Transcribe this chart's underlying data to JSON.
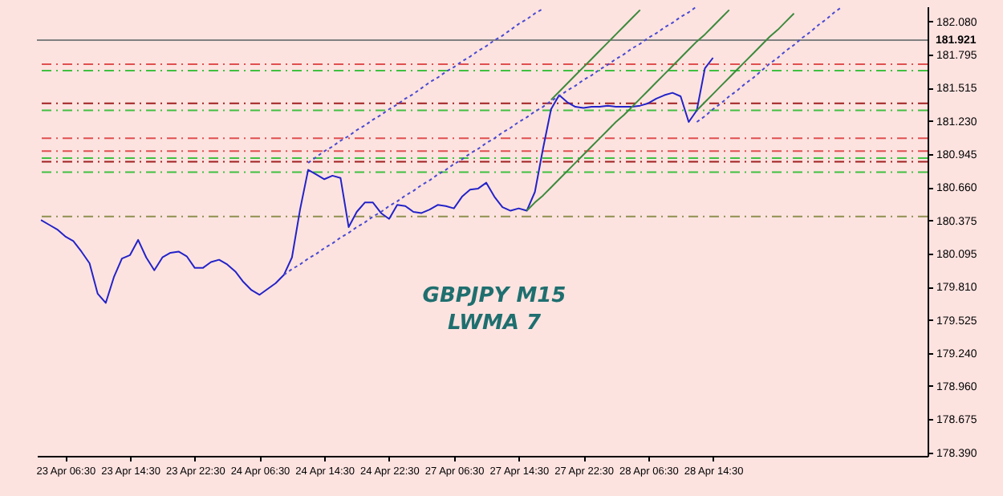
{
  "chart_data": {
    "type": "line",
    "annotations": [
      "GBPJPY M15",
      "LWMA 7"
    ],
    "categories": [
      null,
      null,
      null,
      "23 Apr 06:30",
      null,
      null,
      null,
      null,
      null,
      null,
      null,
      "23 Apr 14:30",
      null,
      null,
      null,
      null,
      null,
      null,
      null,
      "23 Apr 22:30",
      null,
      null,
      null,
      null,
      null,
      null,
      null,
      "24 Apr 06:30",
      null,
      null,
      null,
      null,
      null,
      null,
      null,
      "24 Apr 14:30",
      null,
      null,
      null,
      null,
      null,
      null,
      null,
      "24 Apr 22:30",
      null,
      null,
      null,
      null,
      null,
      null,
      null,
      "27 Apr 06:30",
      null,
      null,
      null,
      null,
      null,
      null,
      null,
      "27 Apr 14:30",
      null,
      null,
      null,
      null,
      null,
      null,
      null,
      "27 Apr 22:30",
      null,
      null,
      null,
      null,
      null,
      null,
      null,
      "28 Apr 06:30",
      null,
      null,
      null,
      null,
      null,
      null,
      null,
      "28 Apr 14:30",
      null,
      null,
      null,
      null,
      null,
      null,
      null,
      null,
      null,
      null,
      null,
      null,
      null,
      null,
      null,
      null,
      null,
      null,
      null,
      null,
      null,
      null,
      null,
      null,
      null,
      null
    ],
    "ylim": [
      178.36,
      182.21
    ],
    "yticks": [
      {
        "value": 182.08,
        "label": "182.080"
      },
      {
        "value": 181.795,
        "label": "181.795"
      },
      {
        "value": 181.515,
        "label": "181.515"
      },
      {
        "value": 181.23,
        "label": "181.230"
      },
      {
        "value": 180.945,
        "label": "180.945"
      },
      {
        "value": 180.66,
        "label": "180.660"
      },
      {
        "value": 180.375,
        "label": "180.375"
      },
      {
        "value": 180.095,
        "label": "180.095"
      },
      {
        "value": 179.81,
        "label": "179.810"
      },
      {
        "value": 179.525,
        "label": "179.525"
      },
      {
        "value": 179.24,
        "label": "179.240"
      },
      {
        "value": 178.96,
        "label": "178.960"
      },
      {
        "value": 178.675,
        "label": "178.675"
      },
      {
        "value": 178.39,
        "label": "178.390"
      }
    ],
    "series": [
      {
        "color": "#2323c8",
        "line_style": "solid",
        "values": [
          180.38,
          180.34,
          180.3,
          180.24,
          180.2,
          180.11,
          180.01,
          179.75,
          179.67,
          179.89,
          180.05,
          180.08,
          180.21,
          180.06,
          179.95,
          180.06,
          180.1,
          180.11,
          180.07,
          179.97,
          179.97,
          180.02,
          180.04,
          180.0,
          179.94,
          179.85,
          179.78,
          179.74,
          179.79,
          179.84,
          179.91,
          180.06,
          180.47,
          180.81,
          180.77,
          180.73,
          180.76,
          180.74,
          180.32,
          180.45,
          180.53,
          180.53,
          180.44,
          180.39,
          180.51,
          180.5,
          180.45,
          180.44,
          180.47,
          180.51,
          180.5,
          180.48,
          180.58,
          180.64,
          180.65,
          180.7,
          180.58,
          180.49,
          180.46,
          180.48,
          180.46,
          180.62,
          180.99,
          181.33,
          181.45,
          181.39,
          181.35,
          181.34,
          181.35,
          181.35,
          181.36,
          181.35,
          181.35,
          181.35,
          181.36,
          181.38,
          181.42,
          181.45,
          181.47,
          181.44,
          181.22,
          181.32,
          181.68,
          181.77,
          null,
          null,
          null,
          null,
          null,
          null,
          null,
          null,
          null,
          null,
          null,
          null,
          null,
          null,
          null,
          null,
          null,
          null,
          null,
          null,
          null,
          null,
          null,
          null,
          null,
          null
        ]
      },
      {
        "color": "#4a4ad0",
        "line_style": "dotted",
        "values": [
          null,
          null,
          null,
          null,
          null,
          null,
          null,
          null,
          null,
          null,
          null,
          null,
          null,
          null,
          null,
          null,
          null,
          null,
          null,
          null,
          null,
          null,
          null,
          null,
          null,
          null,
          null,
          null,
          null,
          null,
          179.91,
          179.96,
          180.0,
          180.05,
          180.09,
          180.14,
          180.18,
          180.23,
          180.27,
          180.32,
          180.36,
          180.41,
          180.45,
          180.5,
          180.54,
          180.59,
          180.63,
          180.68,
          180.72,
          180.77,
          180.81,
          180.86,
          180.9,
          180.95,
          180.99,
          181.04,
          181.08,
          181.13,
          181.17,
          181.22,
          181.26,
          181.31,
          181.35,
          181.4,
          181.44,
          181.49,
          181.53,
          181.58,
          181.62,
          181.67,
          181.71,
          181.76,
          181.8,
          181.85,
          181.89,
          181.94,
          181.98,
          182.03,
          182.07,
          182.12,
          182.16,
          182.21,
          null,
          null,
          null,
          null,
          null,
          null,
          null,
          null,
          null,
          null,
          null,
          null,
          null,
          null,
          null,
          null,
          null,
          null,
          null,
          null,
          null,
          null,
          null,
          null,
          null,
          null,
          null,
          null
        ]
      },
      {
        "color": "#4a4ad0",
        "line_style": "dotted",
        "values": [
          null,
          null,
          null,
          null,
          null,
          null,
          null,
          null,
          null,
          null,
          null,
          null,
          null,
          null,
          null,
          null,
          null,
          null,
          null,
          null,
          null,
          null,
          null,
          null,
          null,
          null,
          null,
          null,
          null,
          null,
          null,
          null,
          null,
          180.87,
          180.92,
          180.97,
          181.01,
          181.06,
          181.1,
          181.15,
          181.19,
          181.24,
          181.28,
          181.33,
          181.37,
          181.42,
          181.46,
          181.51,
          181.56,
          181.6,
          181.65,
          181.69,
          181.74,
          181.78,
          181.83,
          181.87,
          181.92,
          181.96,
          182.01,
          182.06,
          182.1,
          182.15,
          182.19,
          null,
          null,
          null,
          null,
          null,
          null,
          null,
          null,
          null,
          null,
          null,
          null,
          null,
          null,
          null,
          null,
          null,
          null,
          null,
          null,
          null,
          null,
          null,
          null,
          null,
          null,
          null,
          null,
          null,
          null,
          null,
          null,
          null,
          null,
          null,
          null,
          null,
          null,
          null,
          null,
          null,
          null,
          null,
          null,
          null,
          null,
          null
        ]
      },
      {
        "color": "#4a4ad0",
        "line_style": "dotted",
        "values": [
          null,
          null,
          null,
          null,
          null,
          null,
          null,
          null,
          null,
          null,
          null,
          null,
          null,
          null,
          null,
          null,
          null,
          null,
          null,
          null,
          null,
          null,
          null,
          null,
          null,
          null,
          null,
          null,
          null,
          null,
          null,
          null,
          null,
          null,
          null,
          null,
          null,
          null,
          null,
          null,
          null,
          null,
          null,
          null,
          null,
          null,
          null,
          null,
          null,
          null,
          null,
          null,
          null,
          null,
          null,
          null,
          null,
          null,
          null,
          null,
          null,
          null,
          null,
          null,
          null,
          null,
          null,
          null,
          null,
          null,
          null,
          null,
          null,
          null,
          null,
          null,
          null,
          null,
          null,
          null,
          null,
          181.22,
          181.27,
          181.33,
          181.38,
          181.44,
          181.49,
          181.55,
          181.6,
          181.66,
          181.72,
          181.77,
          181.83,
          181.88,
          181.94,
          181.99,
          182.05,
          182.1,
          182.16,
          182.21,
          null,
          null,
          null,
          null,
          null,
          null,
          null,
          null,
          null,
          null
        ]
      },
      {
        "color": "#3c8a3c",
        "line_style": "solid",
        "values": [
          null,
          null,
          null,
          null,
          null,
          null,
          null,
          null,
          null,
          null,
          null,
          null,
          null,
          null,
          null,
          null,
          null,
          null,
          null,
          null,
          null,
          null,
          null,
          null,
          null,
          null,
          null,
          null,
          null,
          null,
          null,
          null,
          null,
          null,
          null,
          null,
          null,
          null,
          null,
          null,
          null,
          null,
          null,
          null,
          null,
          null,
          null,
          null,
          null,
          null,
          null,
          null,
          null,
          null,
          null,
          null,
          null,
          null,
          null,
          null,
          180.46,
          180.53,
          180.59,
          180.66,
          180.73,
          180.8,
          180.87,
          180.94,
          181.01,
          181.08,
          181.15,
          181.22,
          181.28,
          181.35,
          181.42,
          181.49,
          181.56,
          181.63,
          181.7,
          181.77,
          181.84,
          181.91,
          181.97,
          182.04,
          182.11,
          182.18,
          null,
          null,
          null,
          null,
          null,
          null,
          null,
          null,
          null,
          null,
          null,
          null,
          null,
          null,
          null,
          null,
          null,
          null,
          null,
          null,
          null,
          null,
          null,
          null
        ]
      },
      {
        "color": "#3c8a3c",
        "line_style": "solid",
        "values": [
          null,
          null,
          null,
          null,
          null,
          null,
          null,
          null,
          null,
          null,
          null,
          null,
          null,
          null,
          null,
          null,
          null,
          null,
          null,
          null,
          null,
          null,
          null,
          null,
          null,
          null,
          null,
          null,
          null,
          null,
          null,
          null,
          null,
          null,
          null,
          null,
          null,
          null,
          null,
          null,
          null,
          null,
          null,
          null,
          null,
          null,
          null,
          null,
          null,
          null,
          null,
          null,
          null,
          null,
          null,
          null,
          null,
          null,
          null,
          null,
          null,
          null,
          null,
          181.41,
          181.48,
          181.55,
          181.62,
          181.69,
          181.76,
          181.83,
          181.9,
          181.97,
          182.04,
          182.11,
          182.18,
          null,
          null,
          null,
          null,
          null,
          null,
          null,
          null,
          null,
          null,
          null,
          null,
          null,
          null,
          null,
          null,
          null,
          null,
          null,
          null,
          null,
          null,
          null,
          null,
          null,
          null,
          null,
          null,
          null,
          null,
          null,
          null,
          null,
          null,
          null
        ]
      },
      {
        "color": "#3c8a3c",
        "line_style": "solid",
        "values": [
          null,
          null,
          null,
          null,
          null,
          null,
          null,
          null,
          null,
          null,
          null,
          null,
          null,
          null,
          null,
          null,
          null,
          null,
          null,
          null,
          null,
          null,
          null,
          null,
          null,
          null,
          null,
          null,
          null,
          null,
          null,
          null,
          null,
          null,
          null,
          null,
          null,
          null,
          null,
          null,
          null,
          null,
          null,
          null,
          null,
          null,
          null,
          null,
          null,
          null,
          null,
          null,
          null,
          null,
          null,
          null,
          null,
          null,
          null,
          null,
          null,
          null,
          null,
          null,
          null,
          null,
          null,
          null,
          null,
          null,
          null,
          null,
          null,
          null,
          null,
          null,
          null,
          null,
          null,
          null,
          null,
          181.32,
          181.39,
          181.46,
          181.53,
          181.6,
          181.67,
          181.74,
          181.81,
          181.88,
          181.95,
          182.01,
          182.08,
          182.15,
          null,
          null,
          null,
          null,
          null,
          null,
          null,
          null,
          null,
          null,
          null,
          null,
          null,
          null,
          null,
          null
        ]
      }
    ],
    "ref_lines": [
      {
        "axis": "y",
        "value": 181.921,
        "label": "181.921",
        "color": "#808080",
        "line_style": "solid"
      },
      {
        "axis": "y",
        "value": 181.715,
        "color": "#e05050",
        "line_style": "dashed"
      },
      {
        "axis": "y",
        "value": 181.66,
        "color": "#40c040",
        "line_style": "dashed"
      },
      {
        "axis": "y",
        "value": 181.38,
        "color": "#a02020",
        "line_style": "dashed"
      },
      {
        "axis": "y",
        "value": 181.32,
        "color": "#40c040",
        "line_style": "dashed"
      },
      {
        "axis": "y",
        "value": 181.08,
        "color": "#e05050",
        "line_style": "dashed"
      },
      {
        "axis": "y",
        "value": 180.97,
        "color": "#e05050",
        "line_style": "dashed"
      },
      {
        "axis": "y",
        "value": 180.91,
        "color": "#40c040",
        "line_style": "dashed"
      },
      {
        "axis": "y",
        "value": 180.88,
        "color": "#a02020",
        "line_style": "dashed"
      },
      {
        "axis": "y",
        "value": 180.79,
        "color": "#40c040",
        "line_style": "dashed"
      },
      {
        "axis": "y",
        "value": 180.41,
        "color": "#909050",
        "line_style": "dashed"
      }
    ]
  }
}
